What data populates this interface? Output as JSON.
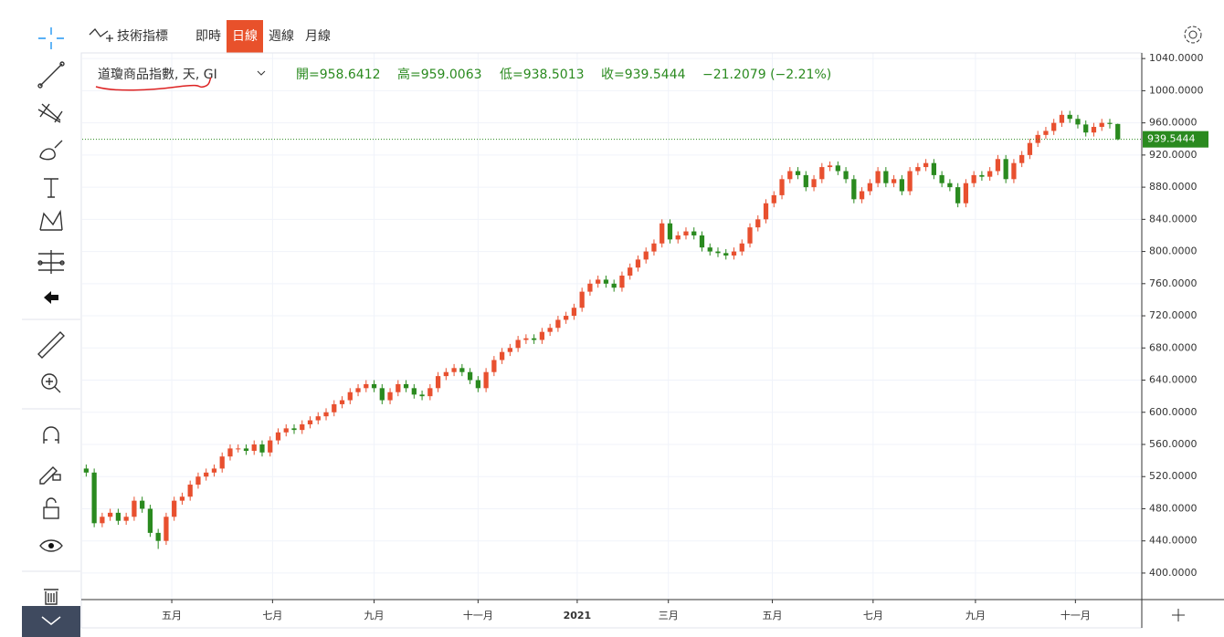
{
  "toolbar": {
    "indicators": "技術指標",
    "intervals": [
      "即時",
      "日線",
      "週線",
      "月線"
    ],
    "active_interval": 1
  },
  "legend": {
    "symbol": "道瓊商品指數, 天, GI",
    "open": "開=958.6412",
    "high": "高=959.0063",
    "low": "低=938.5013",
    "close": "收=939.5444",
    "change": "−21.2079 (−2.21%)"
  },
  "chart_data": {
    "type": "candlestick",
    "up_color": "#e8502f",
    "down_color": "#2a8a1f",
    "grid": true,
    "xlim": [
      -0.5,
      132
    ],
    "xticks": [
      {
        "value": 10.7,
        "label": "五月"
      },
      {
        "value": 23.3,
        "label": "七月"
      },
      {
        "value": 36,
        "label": "九月"
      },
      {
        "value": 49,
        "label": "十一月"
      },
      {
        "value": 61.4,
        "label": "2021"
      },
      {
        "value": 72.8,
        "label": "三月"
      },
      {
        "value": 85.8,
        "label": "五月"
      },
      {
        "value": 98.4,
        "label": "七月"
      },
      {
        "value": 111.2,
        "label": "九月"
      },
      {
        "value": 123.7,
        "label": "十一月"
      }
    ],
    "ylim": [
      367,
      1047
    ],
    "yticks": [
      {
        "value": 400,
        "label": "400.0000"
      },
      {
        "value": 440,
        "label": "440.0000"
      },
      {
        "value": 480,
        "label": "480.0000"
      },
      {
        "value": 520,
        "label": "520.0000"
      },
      {
        "value": 560,
        "label": "560.0000"
      },
      {
        "value": 600,
        "label": "600.0000"
      },
      {
        "value": 640,
        "label": "640.0000"
      },
      {
        "value": 680,
        "label": "680.0000"
      },
      {
        "value": 720,
        "label": "720.0000"
      },
      {
        "value": 760,
        "label": "760.0000"
      },
      {
        "value": 800,
        "label": "800.0000"
      },
      {
        "value": 840,
        "label": "840.0000"
      },
      {
        "value": 880,
        "label": "880.0000"
      },
      {
        "value": 920,
        "label": "920.0000"
      },
      {
        "value": 960,
        "label": "960.0000"
      },
      {
        "value": 1000,
        "label": "1000.0000"
      },
      {
        "value": 1040,
        "label": "1040.0000"
      }
    ],
    "open": [
      530,
      525,
      462,
      470,
      475,
      465,
      470,
      490,
      480,
      450,
      440,
      470,
      490,
      495,
      510,
      520,
      525,
      530,
      545,
      555,
      555,
      552,
      560,
      550,
      565,
      575,
      580,
      578,
      585,
      590,
      595,
      600,
      610,
      615,
      625,
      630,
      635,
      630,
      615,
      625,
      635,
      630,
      622,
      620,
      630,
      645,
      650,
      655,
      650,
      640,
      630,
      650,
      665,
      675,
      680,
      690,
      692,
      690,
      700,
      705,
      715,
      720,
      730,
      750,
      760,
      765,
      760,
      755,
      770,
      780,
      790,
      800,
      810,
      835,
      815,
      820,
      825,
      820,
      805,
      800,
      798,
      795,
      800,
      810,
      830,
      840,
      860,
      870,
      890,
      900,
      895,
      880,
      890,
      905,
      907,
      900,
      890,
      865,
      875,
      885,
      900,
      885,
      890,
      875,
      900,
      905,
      910,
      895,
      885,
      880,
      860,
      885,
      895,
      893,
      900,
      915,
      890,
      910,
      920,
      935,
      945,
      950,
      960,
      970,
      965,
      958,
      948,
      955,
      960,
      958.6412
    ],
    "high": [
      535,
      530,
      475,
      480,
      480,
      475,
      495,
      495,
      485,
      455,
      475,
      495,
      500,
      515,
      525,
      530,
      535,
      550,
      560,
      560,
      560,
      565,
      565,
      570,
      580,
      585,
      585,
      590,
      595,
      600,
      605,
      615,
      620,
      630,
      635,
      640,
      640,
      635,
      630,
      640,
      640,
      635,
      627,
      635,
      650,
      655,
      660,
      660,
      655,
      645,
      655,
      670,
      680,
      685,
      695,
      697,
      697,
      705,
      710,
      720,
      725,
      735,
      755,
      765,
      770,
      770,
      765,
      775,
      785,
      795,
      805,
      815,
      840,
      840,
      825,
      830,
      830,
      825,
      810,
      805,
      803,
      805,
      815,
      835,
      845,
      865,
      875,
      895,
      905,
      905,
      900,
      895,
      910,
      912,
      912,
      905,
      895,
      880,
      890,
      905,
      905,
      895,
      895,
      905,
      910,
      915,
      915,
      900,
      890,
      885,
      890,
      900,
      900,
      905,
      920,
      920,
      915,
      925,
      940,
      950,
      955,
      965,
      975,
      975,
      970,
      963,
      960,
      965,
      965,
      959.0063
    ],
    "low": [
      520,
      457,
      457,
      465,
      460,
      460,
      465,
      475,
      445,
      430,
      435,
      465,
      485,
      490,
      505,
      515,
      520,
      525,
      540,
      550,
      547,
      547,
      545,
      545,
      560,
      570,
      573,
      573,
      580,
      585,
      590,
      595,
      605,
      610,
      620,
      625,
      625,
      610,
      610,
      620,
      625,
      617,
      615,
      615,
      625,
      640,
      645,
      645,
      635,
      625,
      625,
      645,
      660,
      670,
      675,
      685,
      685,
      685,
      695,
      700,
      710,
      715,
      725,
      745,
      755,
      755,
      750,
      750,
      765,
      775,
      785,
      795,
      805,
      810,
      810,
      815,
      815,
      800,
      795,
      793,
      790,
      790,
      795,
      805,
      825,
      835,
      855,
      865,
      885,
      890,
      875,
      875,
      885,
      900,
      895,
      885,
      860,
      860,
      870,
      880,
      880,
      880,
      870,
      870,
      895,
      900,
      890,
      880,
      875,
      855,
      855,
      880,
      888,
      888,
      895,
      885,
      885,
      905,
      915,
      930,
      940,
      945,
      955,
      960,
      953,
      943,
      943,
      950,
      953,
      938.5013
    ],
    "close": [
      525,
      462,
      470,
      475,
      465,
      470,
      490,
      480,
      450,
      440,
      470,
      490,
      495,
      510,
      520,
      525,
      530,
      545,
      555,
      555,
      552,
      560,
      550,
      565,
      575,
      580,
      578,
      585,
      590,
      595,
      600,
      610,
      615,
      625,
      630,
      635,
      630,
      615,
      625,
      635,
      630,
      622,
      620,
      630,
      645,
      650,
      655,
      650,
      640,
      630,
      650,
      665,
      675,
      680,
      690,
      692,
      690,
      700,
      705,
      715,
      720,
      730,
      750,
      760,
      765,
      760,
      755,
      770,
      780,
      790,
      800,
      810,
      835,
      815,
      820,
      825,
      820,
      805,
      800,
      798,
      795,
      800,
      810,
      830,
      840,
      860,
      870,
      890,
      900,
      895,
      880,
      890,
      905,
      907,
      900,
      890,
      865,
      875,
      885,
      900,
      885,
      890,
      875,
      900,
      905,
      910,
      895,
      885,
      880,
      860,
      885,
      895,
      893,
      900,
      915,
      890,
      910,
      920,
      935,
      945,
      950,
      960,
      970,
      965,
      958,
      948,
      955,
      960,
      958.6412,
      939.5444
    ]
  }
}
